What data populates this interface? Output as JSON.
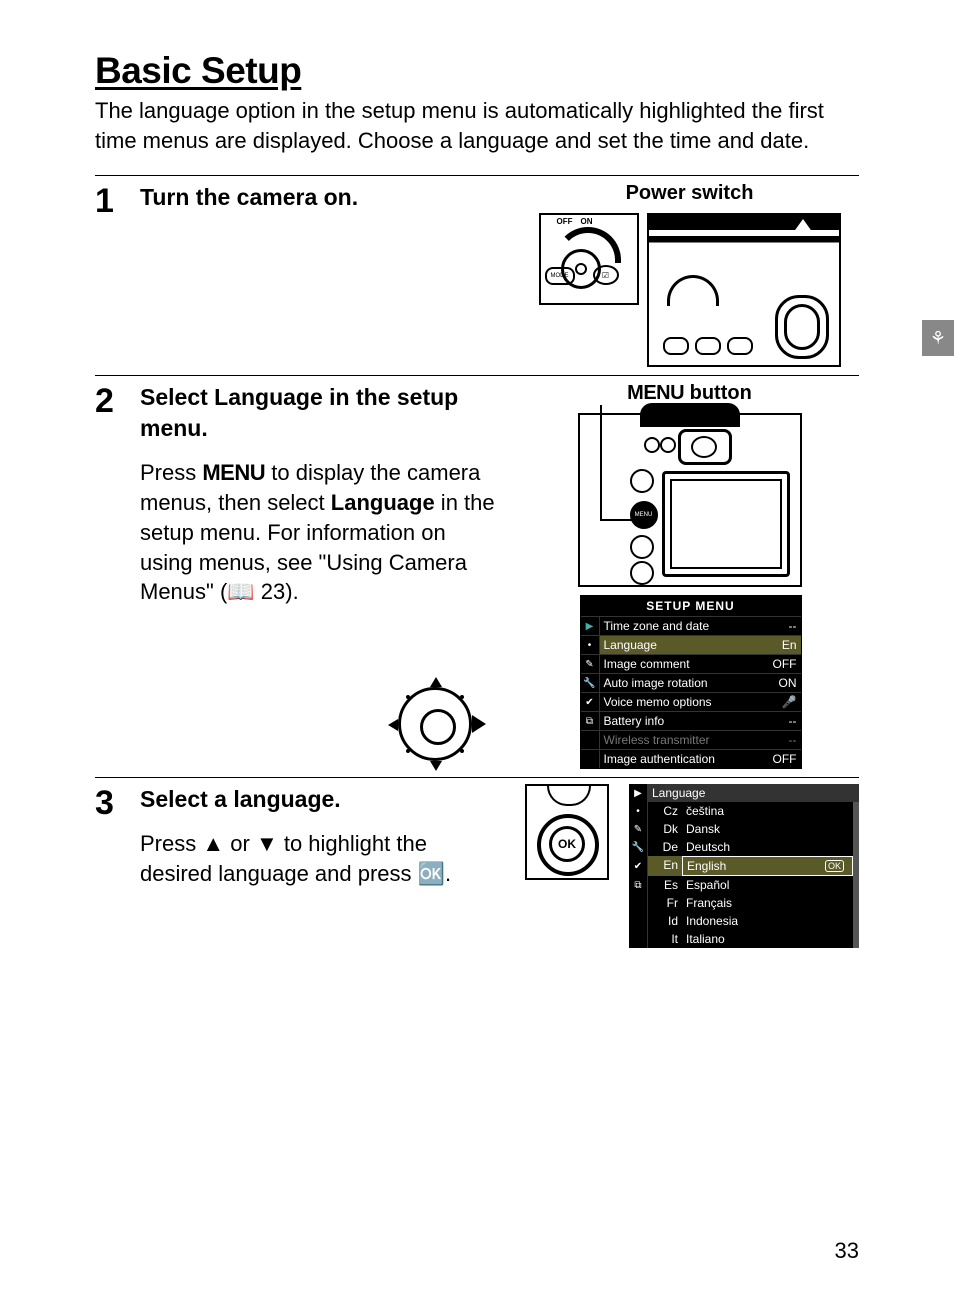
{
  "title": "Basic Setup",
  "intro": "The language option in the setup menu is automatically highlighted the first time menus are displayed. Choose a language and set the time and date.",
  "page_number": "33",
  "side_tab_glyph": "⚘",
  "step1": {
    "num": "1",
    "title": "Turn the camera on.",
    "right_label": "Power switch",
    "switch_off": "OFF",
    "switch_on": "ON",
    "mode": "MODE",
    "ev": "☑"
  },
  "step2": {
    "num": "2",
    "title_pre": "Select ",
    "title_bold": "Language",
    "title_post": " in the setup menu.",
    "body_a": "Press ",
    "body_menu": "MENU",
    "body_b": " to display the camera menus, then select ",
    "body_lang": "Language",
    "body_c": " in the setup menu. For information on using menus, see \"Using Camera Menus\" (📖 23).",
    "right_label_pre": "MENU",
    "right_label_post": " button",
    "menu_btn": "MENU",
    "setup_menu": {
      "header": "SETUP MENU",
      "icons": [
        "▶",
        "•",
        "✎",
        "🔧",
        "✔",
        "⧉"
      ],
      "rows": [
        {
          "label": "Time zone and date",
          "val": "--"
        },
        {
          "label": "Language",
          "val": "En",
          "hl": true
        },
        {
          "label": "Image comment",
          "val": "OFF"
        },
        {
          "label": "Auto image rotation",
          "val": "ON"
        },
        {
          "label": "Voice memo options",
          "val": "🎤"
        },
        {
          "label": "Battery info",
          "val": "--"
        },
        {
          "label": "Wireless transmitter",
          "val": "--",
          "dim": true
        },
        {
          "label": "Image authentication",
          "val": "OFF"
        }
      ]
    }
  },
  "step3": {
    "num": "3",
    "title": "Select a language.",
    "body_a": "Press ",
    "up": "▲",
    "body_b": " or ",
    "down": "▼",
    "body_c": " to highlight the desired language and press 🆗.",
    "ok_label": "OK",
    "lang_menu": {
      "header": "Language",
      "icons": [
        "▶",
        "•",
        "✎",
        "🔧",
        "✔",
        "⧉"
      ],
      "rows": [
        {
          "code": "Cz",
          "name": "čeština"
        },
        {
          "code": "Dk",
          "name": "Dansk"
        },
        {
          "code": "De",
          "name": "Deutsch"
        },
        {
          "code": "En",
          "name": "English",
          "hl": true,
          "ok": "OK"
        },
        {
          "code": "Es",
          "name": "Español"
        },
        {
          "code": "Fr",
          "name": "Français"
        },
        {
          "code": "Id",
          "name": "Indonesia"
        },
        {
          "code": "It",
          "name": "Italiano"
        }
      ]
    }
  },
  "colors": {
    "text": "#000000",
    "bg": "#ffffff",
    "menu_bg": "#000000",
    "menu_hl": "#5a5a28",
    "menu_dim": "#777777",
    "side_tab": "#888888"
  },
  "typography": {
    "title_size_pt": 28,
    "body_size_pt": 17,
    "step_num_size_pt": 26,
    "right_label_size_pt": 15
  }
}
